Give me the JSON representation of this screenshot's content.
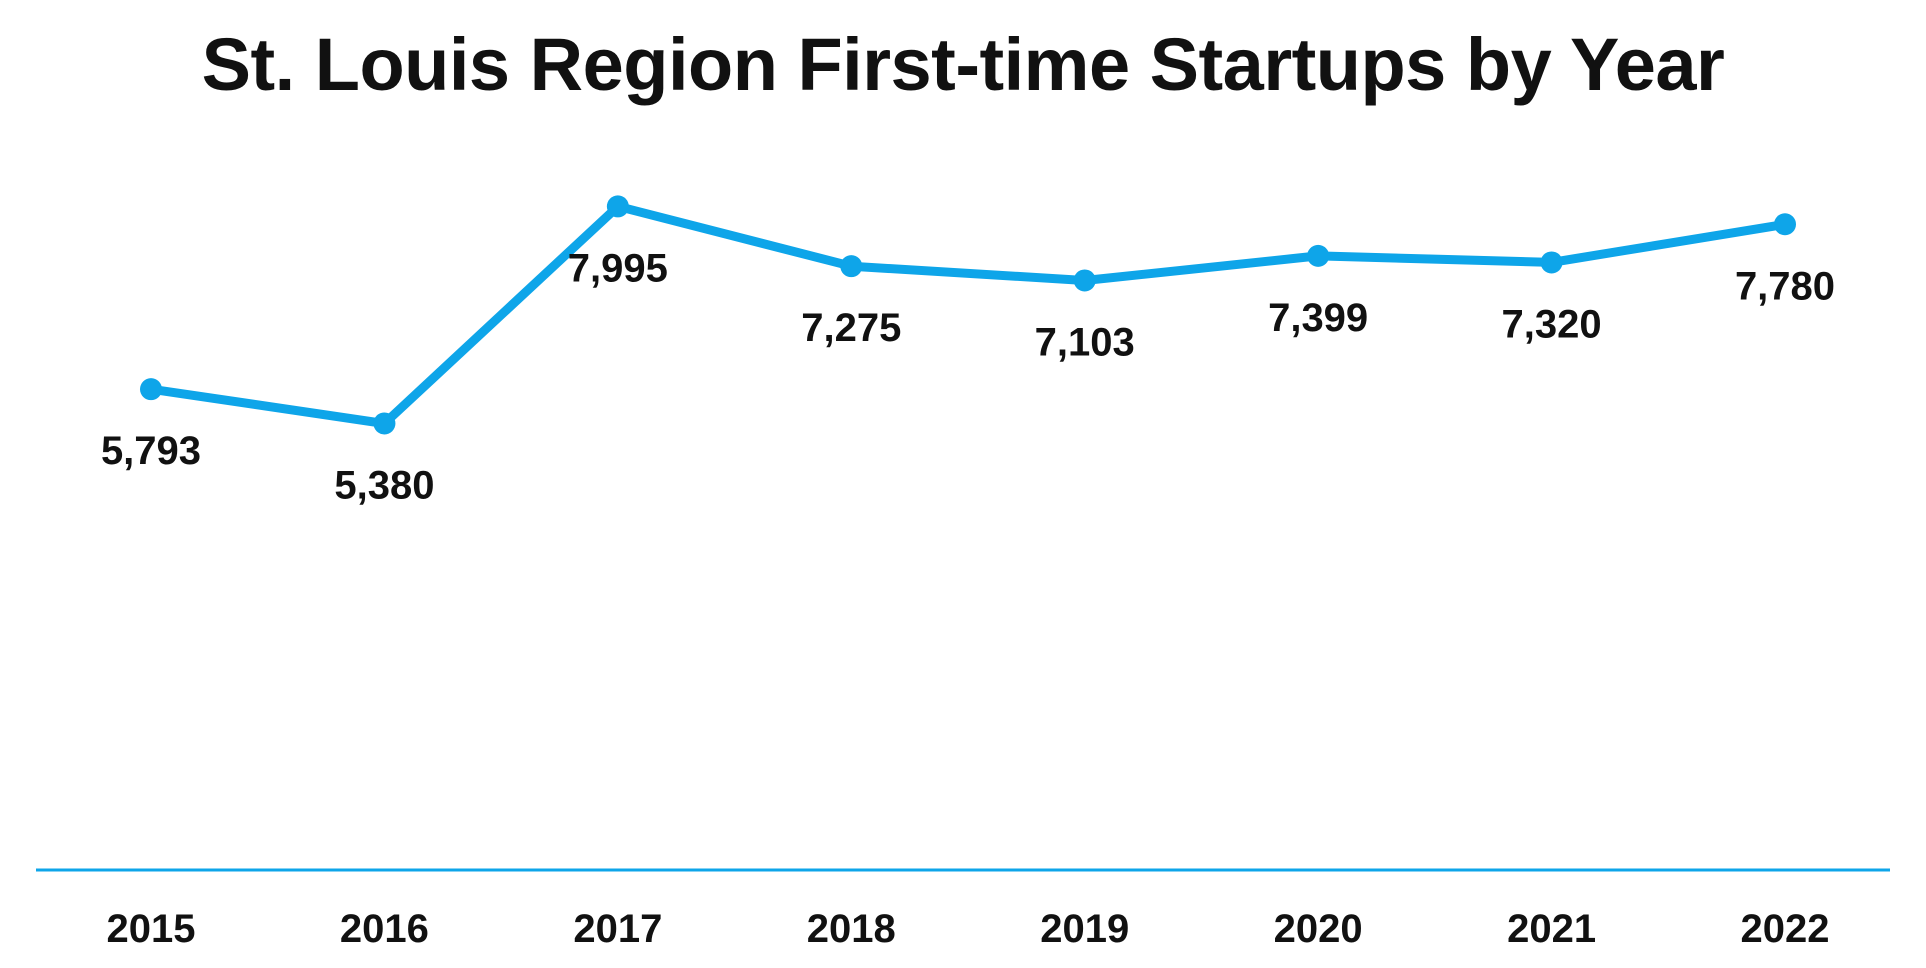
{
  "chart_data": {
    "type": "line",
    "title": "St. Louis Region First-time Startups by Year",
    "xlabel": "",
    "ylabel": "",
    "categories": [
      "2015",
      "2016",
      "2017",
      "2018",
      "2019",
      "2020",
      "2021",
      "2022"
    ],
    "series": [
      {
        "values": [
          5793,
          5380,
          7995,
          7275,
          7103,
          7399,
          7320,
          7780
        ],
        "labels": [
          "5,793",
          "5,380",
          "7,995",
          "7,275",
          "7,103",
          "7,399",
          "7,320",
          "7,780"
        ],
        "color": "#0ea5e9"
      }
    ],
    "ylim": [
      0,
      10000
    ],
    "grid": false,
    "legend": "none",
    "data_label_position": "below"
  }
}
